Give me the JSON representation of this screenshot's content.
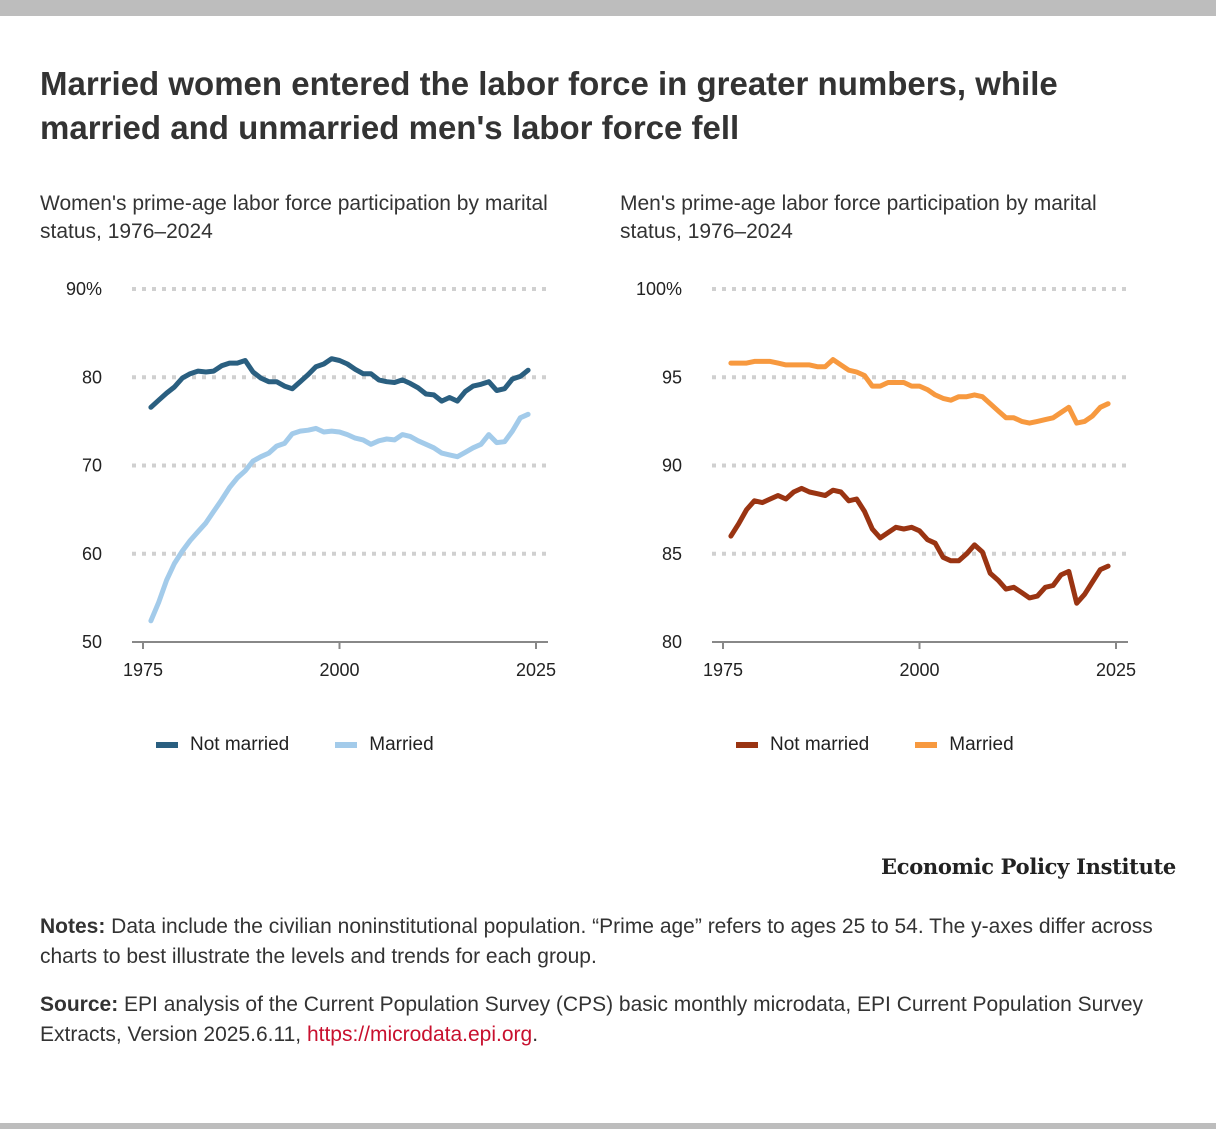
{
  "title": "Married women entered the labor force in greater numbers, while married and unmarried men's labor force fell",
  "chart_data": [
    {
      "type": "line",
      "title": "Women's prime-age labor force participation by marital status, 1976–2024",
      "xlabel": "",
      "ylabel": "",
      "xlim": [
        1975,
        2025
      ],
      "ylim": [
        50,
        90
      ],
      "x_ticks": [
        "1975",
        "2000",
        "2025"
      ],
      "y_ticks": [
        "90%",
        "80",
        "70",
        "60",
        "50"
      ],
      "grid": true,
      "legend": "bottom",
      "x": [
        1976,
        1977,
        1978,
        1979,
        1980,
        1981,
        1982,
        1983,
        1984,
        1985,
        1986,
        1987,
        1988,
        1989,
        1990,
        1991,
        1992,
        1993,
        1994,
        1995,
        1996,
        1997,
        1998,
        1999,
        2000,
        2001,
        2002,
        2003,
        2004,
        2005,
        2006,
        2007,
        2008,
        2009,
        2010,
        2011,
        2012,
        2013,
        2014,
        2015,
        2016,
        2017,
        2018,
        2019,
        2020,
        2021,
        2022,
        2023,
        2024
      ],
      "series": [
        {
          "name": "Not married",
          "color": "#2a5f80",
          "values": [
            76.6,
            77.4,
            78.2,
            78.9,
            79.9,
            80.4,
            80.7,
            80.6,
            80.7,
            81.3,
            81.6,
            81.6,
            81.9,
            80.6,
            79.9,
            79.5,
            79.5,
            79.0,
            78.7,
            79.5,
            80.3,
            81.2,
            81.5,
            82.1,
            81.9,
            81.5,
            80.9,
            80.4,
            80.4,
            79.7,
            79.5,
            79.4,
            79.7,
            79.3,
            78.8,
            78.1,
            78.0,
            77.3,
            77.7,
            77.3,
            78.4,
            79.0,
            79.2,
            79.5,
            78.5,
            78.7,
            79.8,
            80.1,
            80.8
          ]
        },
        {
          "name": "Married",
          "color": "#a3cbea",
          "values": [
            52.4,
            54.5,
            57.0,
            58.9,
            60.3,
            61.5,
            62.5,
            63.5,
            64.8,
            66.1,
            67.5,
            68.6,
            69.4,
            70.5,
            71.0,
            71.4,
            72.2,
            72.5,
            73.6,
            73.9,
            74.0,
            74.2,
            73.8,
            73.9,
            73.8,
            73.5,
            73.1,
            72.9,
            72.4,
            72.8,
            73.0,
            72.9,
            73.5,
            73.3,
            72.8,
            72.4,
            72.0,
            71.4,
            71.2,
            71.0,
            71.5,
            72.0,
            72.4,
            73.5,
            72.6,
            72.7,
            73.9,
            75.4,
            75.8
          ]
        }
      ]
    },
    {
      "type": "line",
      "title": "Men's prime-age labor force participation by marital status, 1976–2024",
      "xlabel": "",
      "ylabel": "",
      "xlim": [
        1975,
        2025
      ],
      "ylim": [
        80,
        100
      ],
      "x_ticks": [
        "1975",
        "2000",
        "2025"
      ],
      "y_ticks": [
        "100%",
        "95",
        "90",
        "85",
        "80"
      ],
      "grid": true,
      "legend": "bottom",
      "x": [
        1976,
        1977,
        1978,
        1979,
        1980,
        1981,
        1982,
        1983,
        1984,
        1985,
        1986,
        1987,
        1988,
        1989,
        1990,
        1991,
        1992,
        1993,
        1994,
        1995,
        1996,
        1997,
        1998,
        1999,
        2000,
        2001,
        2002,
        2003,
        2004,
        2005,
        2006,
        2007,
        2008,
        2009,
        2010,
        2011,
        2012,
        2013,
        2014,
        2015,
        2016,
        2017,
        2018,
        2019,
        2020,
        2021,
        2022,
        2023,
        2024
      ],
      "series": [
        {
          "name": "Not married",
          "color": "#9a3412",
          "values": [
            86.0,
            86.7,
            87.5,
            88.0,
            87.9,
            88.1,
            88.3,
            88.1,
            88.5,
            88.7,
            88.5,
            88.4,
            88.3,
            88.6,
            88.5,
            88.0,
            88.1,
            87.4,
            86.4,
            85.9,
            86.2,
            86.5,
            86.4,
            86.5,
            86.3,
            85.8,
            85.6,
            84.8,
            84.6,
            84.6,
            85.0,
            85.5,
            85.1,
            83.9,
            83.5,
            83.0,
            83.1,
            82.8,
            82.5,
            82.6,
            83.1,
            83.2,
            83.8,
            84.0,
            82.2,
            82.7,
            83.4,
            84.1,
            84.3
          ]
        },
        {
          "name": "Married",
          "color": "#f7993f",
          "values": [
            95.8,
            95.8,
            95.8,
            95.9,
            95.9,
            95.9,
            95.8,
            95.7,
            95.7,
            95.7,
            95.7,
            95.6,
            95.6,
            96.0,
            95.7,
            95.4,
            95.3,
            95.1,
            94.5,
            94.5,
            94.7,
            94.7,
            94.7,
            94.5,
            94.5,
            94.3,
            94.0,
            93.8,
            93.7,
            93.9,
            93.9,
            94.0,
            93.9,
            93.5,
            93.1,
            92.7,
            92.7,
            92.5,
            92.4,
            92.5,
            92.6,
            92.7,
            93.0,
            93.3,
            92.4,
            92.5,
            92.8,
            93.3,
            93.5
          ]
        }
      ]
    }
  ],
  "legends": {
    "left": {
      "not_married": "Not married",
      "married": "Married"
    },
    "right": {
      "not_married": "Not married",
      "married": "Married"
    }
  },
  "brand": "Economic Policy Institute",
  "notes": {
    "label": "Notes:",
    "text": " Data include the civilian noninstitutional population. “Prime age” refers to ages 25 to 54. The y-axes differ across charts to best illustrate the levels and trends for each group."
  },
  "source": {
    "label": "Source:",
    "text": " EPI analysis of the Current Population Survey (CPS) basic monthly microdata, EPI Current Population Survey Extracts, Version 2025.6.11, ",
    "link": "https://microdata.epi.org",
    "end": "."
  }
}
